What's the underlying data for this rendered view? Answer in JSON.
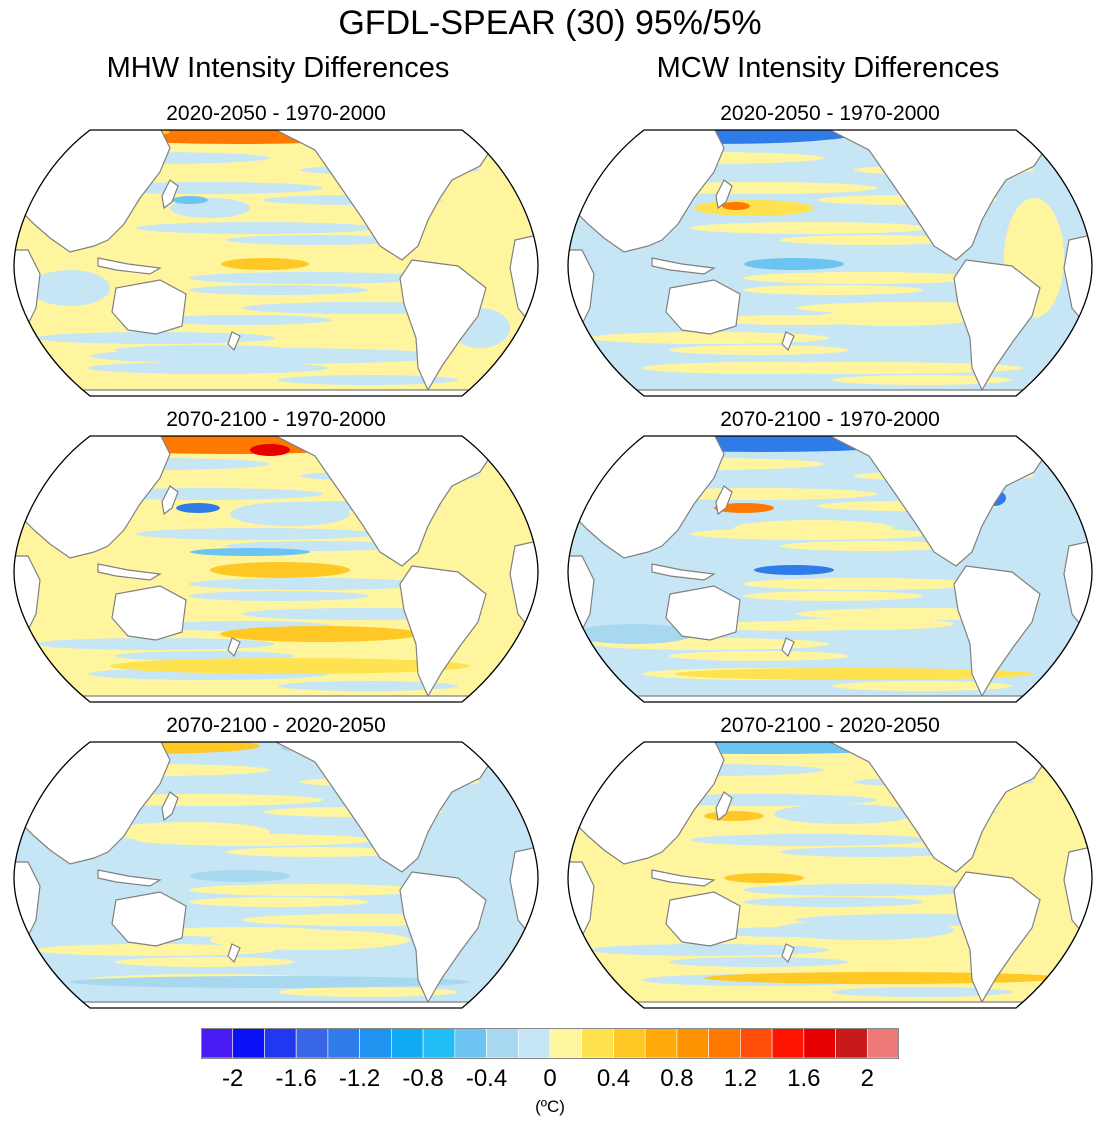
{
  "title": "GFDL-SPEAR (30) 95%/5%",
  "columns": [
    {
      "heading": "MHW Intensity Differences"
    },
    {
      "heading": "MCW Intensity Differences"
    }
  ],
  "panels": [
    {
      "title": "2020-2050 - 1970-2000",
      "variable": "MHW",
      "pattern": "Mostly weak warming (0 to 0.4 °C) across oceans; strong positive Arctic and NW Atlantic, negative Gulf Stream band"
    },
    {
      "title": "2020-2050 - 1970-2000",
      "variable": "MCW",
      "pattern": "Mostly weak cooling (-0.4 to 0 °C); negative Arctic, positive Gulf Stream core and Kuroshio"
    },
    {
      "title": "2070-2100 - 1970-2000",
      "variable": "MHW",
      "pattern": "Stronger warming bands in tropics and Southern Ocean; strong positive Arctic"
    },
    {
      "title": "2070-2100 - 1970-2000",
      "variable": "MCW",
      "pattern": "Mixed weak signal; strong positive Gulf Stream, negative Arctic"
    },
    {
      "title": "2070-2100 - 2020-2050",
      "variable": "MHW",
      "pattern": "Mixed weak warming and cooling; negative Gulf Stream region"
    },
    {
      "title": "2070-2100 - 2020-2050",
      "variable": "MCW",
      "pattern": "Mostly weak warming; strong positive Gulf Stream, negative Arctic fringe"
    }
  ],
  "colorbar": {
    "colors": [
      "#4a1cf5",
      "#0a10f5",
      "#2238f0",
      "#3866e6",
      "#2f7be8",
      "#2092f0",
      "#10aaf2",
      "#20bef5",
      "#6cc4f2",
      "#a8d8f0",
      "#c6e6f6",
      "#fff59e",
      "#ffe24f",
      "#ffc825",
      "#ffaa08",
      "#ff9200",
      "#ff7800",
      "#ff4d0a",
      "#ff1400",
      "#e60000",
      "#c91a1a",
      "#ee7878"
    ],
    "tick_labels": [
      "-2",
      "-1.6",
      "-1.2",
      "-0.8",
      "-0.4",
      "0",
      "0.4",
      "0.8",
      "1.2",
      "1.6",
      "2"
    ],
    "tick_values": [
      -2,
      -1.6,
      -1.2,
      -0.8,
      -0.4,
      0,
      0.4,
      0.8,
      1.2,
      1.6,
      2
    ],
    "min": -2.2,
    "max": 2.2,
    "unit": "(ºC)"
  },
  "colors": {
    "weak_pos": "#fff59e",
    "pos": "#ffe24f",
    "mod_pos": "#ffc825",
    "strong_pos": "#ff7800",
    "very_strong_pos": "#e60000",
    "weak_neg": "#c6e6f6",
    "neg": "#a8d8f0",
    "mod_neg": "#6cc4f2",
    "strong_neg": "#2f7be8",
    "very_strong_neg": "#2238f0",
    "land": "#ffffff",
    "coast": "#808080"
  }
}
